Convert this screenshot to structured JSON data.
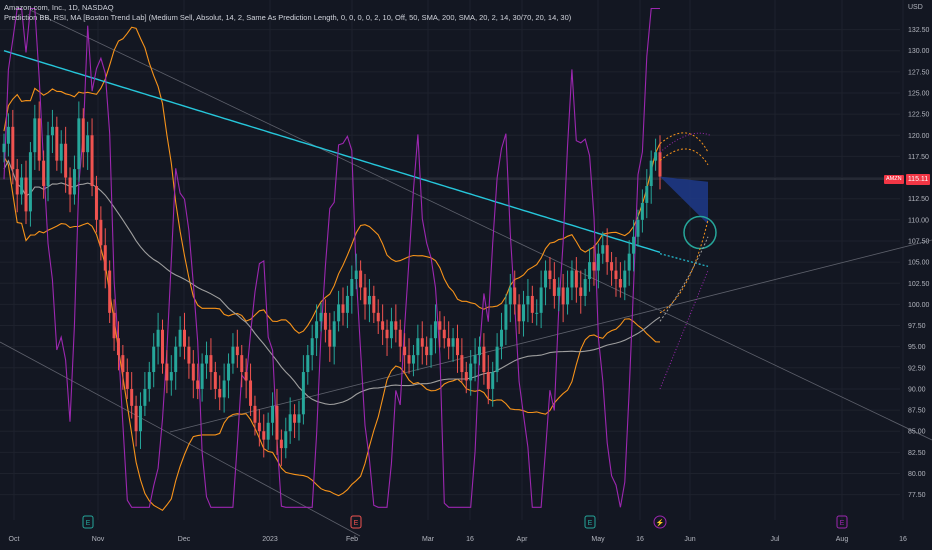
{
  "legend": {
    "line1": "Amazon.com, Inc., 1D, NASDAQ",
    "line2": "Prediction BB, RSI, MA [Boston Trend Lab] (Medium Sell, Absolut, 14, 2, Same As Prediction Length, 0, 0, 0, 0, 2, 10, Off, 50, SMA, 200, SMA, 20, 2, 14, 30/70, 20, 14, 30)"
  },
  "axis_unit": "USD",
  "last_price_label": "115.11",
  "symbol_label": "AMZN",
  "colors": {
    "background": "#131722",
    "up": "#26a69a",
    "down": "#ef5350",
    "bb": "#f7931a",
    "rsi": "#9c27b0",
    "ma_fast": "#9e9e9e",
    "ma_slow": "#26c6da",
    "prediction_fill": "#1e3a8a"
  },
  "chart_data": {
    "type": "candlestick",
    "ylim": [
      74.5,
      136
    ],
    "y_ticks": [
      "132.50",
      "130.00",
      "127.50",
      "125.00",
      "122.50",
      "120.00",
      "117.50",
      "115.00",
      "112.50",
      "110.00",
      "107.50",
      "105.00",
      "102.50",
      "100.00",
      "97.50",
      "95.00",
      "92.50",
      "90.00",
      "87.50",
      "85.00",
      "82.50",
      "80.00",
      "77.50"
    ],
    "x_ticks": [
      "Oct",
      "Nov",
      "Dec",
      "2023",
      "Feb",
      "Mar",
      "16",
      "Apr",
      "May",
      "16",
      "Jun",
      "Jul",
      "Aug",
      "16"
    ],
    "event_markers": [
      "E",
      "E",
      "E",
      "⚡",
      "E"
    ],
    "series": [
      {
        "name": "AMZN",
        "type": "candles"
      },
      {
        "type": "bollinger_upper"
      },
      {
        "type": "bollinger_lower"
      },
      {
        "type": "rsi_overlay"
      },
      {
        "type": "sma_50"
      },
      {
        "type": "sma_200"
      }
    ],
    "closes": [
      119,
      121,
      116,
      113,
      115,
      111,
      118,
      122,
      117,
      114,
      120,
      121,
      117,
      119,
      115,
      113,
      116,
      122,
      118,
      120,
      114,
      110,
      107,
      104,
      99,
      96,
      94,
      92,
      90,
      88,
      85,
      88,
      90,
      92,
      95,
      97,
      93,
      91,
      92,
      95,
      97,
      95,
      93,
      91,
      90,
      93,
      94,
      92,
      90,
      89,
      91,
      93,
      95,
      94,
      92,
      91,
      88,
      86,
      85,
      84,
      86,
      88,
      84,
      83,
      85,
      87,
      86,
      87,
      92,
      94,
      96,
      98,
      99,
      97,
      95,
      98,
      100,
      99,
      101,
      103,
      104,
      102,
      100,
      101,
      99,
      98,
      97,
      96,
      98,
      97,
      95,
      94,
      93,
      94,
      96,
      95,
      94,
      96,
      98,
      97,
      96,
      95,
      96,
      94,
      92,
      91,
      93,
      94,
      95,
      92,
      90,
      92,
      95,
      97,
      100,
      102,
      100,
      98,
      100,
      101,
      99,
      99,
      102,
      104,
      103,
      101,
      102,
      100,
      102,
      104,
      102,
      101,
      103,
      105,
      104,
      106,
      107,
      105,
      104,
      103,
      102,
      104,
      106,
      108,
      110,
      112,
      114,
      117,
      118,
      115.11
    ],
    "last_close": 115.11,
    "bb_upper_note": "estimated",
    "prediction": {
      "target_low": 109.5,
      "target_high": 114
    }
  }
}
